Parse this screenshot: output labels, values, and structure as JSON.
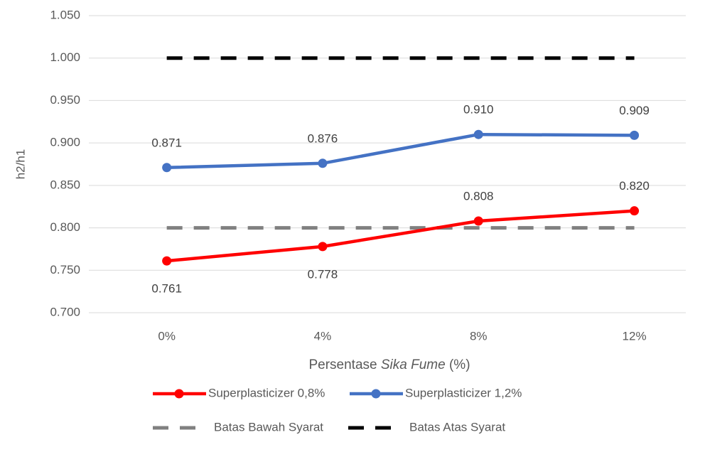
{
  "chart_data": {
    "type": "line",
    "x_label": [
      "Persentase",
      "Sika Fume",
      "(%)"
    ],
    "y_label": "h2/h1",
    "categories": [
      "0%",
      "4%",
      "8%",
      "12%"
    ],
    "series": [
      {
        "name": "Superplasticizer 0,8%",
        "color": "#ff0000",
        "style": "solid",
        "markers": true,
        "values": [
          0.761,
          0.778,
          0.808,
          0.82
        ],
        "value_labels": [
          "0.761",
          "0.778",
          "0.808",
          "0.820"
        ],
        "label_positions": [
          "below",
          "below",
          "above",
          "above"
        ]
      },
      {
        "name": "Superplasticizer 1,2%",
        "color": "#4472c4",
        "style": "solid",
        "markers": true,
        "values": [
          0.871,
          0.876,
          0.91,
          0.909
        ],
        "value_labels": [
          "0.871",
          "0.876",
          "0.910",
          "0.909"
        ],
        "label_positions": [
          "above",
          "above",
          "above",
          "above"
        ]
      },
      {
        "name": "Batas Bawah Syarat",
        "color": "#808080",
        "style": "dashed",
        "markers": false,
        "values": [
          0.8,
          0.8,
          0.8,
          0.8
        ]
      },
      {
        "name": "Batas Atas Syarat",
        "color": "#000000",
        "style": "dashed",
        "markers": false,
        "values": [
          1,
          1,
          1,
          1
        ]
      }
    ],
    "ylim": [
      0.7,
      1.05
    ],
    "yticks": [
      {
        "value": 0.7,
        "label": "0.700"
      },
      {
        "value": 0.75,
        "label": "0.750"
      },
      {
        "value": 0.8,
        "label": "0.800"
      },
      {
        "value": 0.85,
        "label": "0.850"
      },
      {
        "value": 0.9,
        "label": "0.900"
      },
      {
        "value": 0.95,
        "label": "0.950"
      },
      {
        "value": 1,
        "label": "1.000"
      },
      {
        "value": 1.05,
        "label": "1.050"
      }
    ],
    "grid": true,
    "legend": "bottom"
  }
}
